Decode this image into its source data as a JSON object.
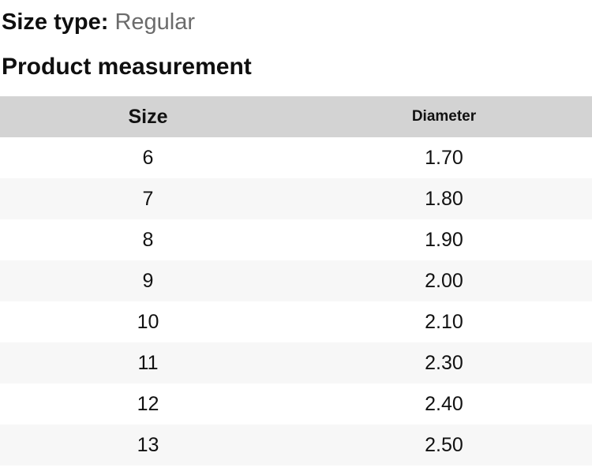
{
  "size_type": {
    "label": "Size type:",
    "value": "Regular"
  },
  "section": {
    "title": "Product measurement"
  },
  "table": {
    "columns": [
      "Size",
      "Diameter"
    ],
    "rows": [
      {
        "size": "6",
        "diameter": "1.70"
      },
      {
        "size": "7",
        "diameter": "1.80"
      },
      {
        "size": "8",
        "diameter": "1.90"
      },
      {
        "size": "9",
        "diameter": "2.00"
      },
      {
        "size": "10",
        "diameter": "2.10"
      },
      {
        "size": "11",
        "diameter": "2.30"
      },
      {
        "size": "12",
        "diameter": "2.40"
      },
      {
        "size": "13",
        "diameter": "2.50"
      }
    ]
  },
  "colors": {
    "header_background": "#d3d3d3",
    "stripe_background": "#f7f7f7",
    "muted_text": "#6b6b6b",
    "text": "#111111"
  }
}
